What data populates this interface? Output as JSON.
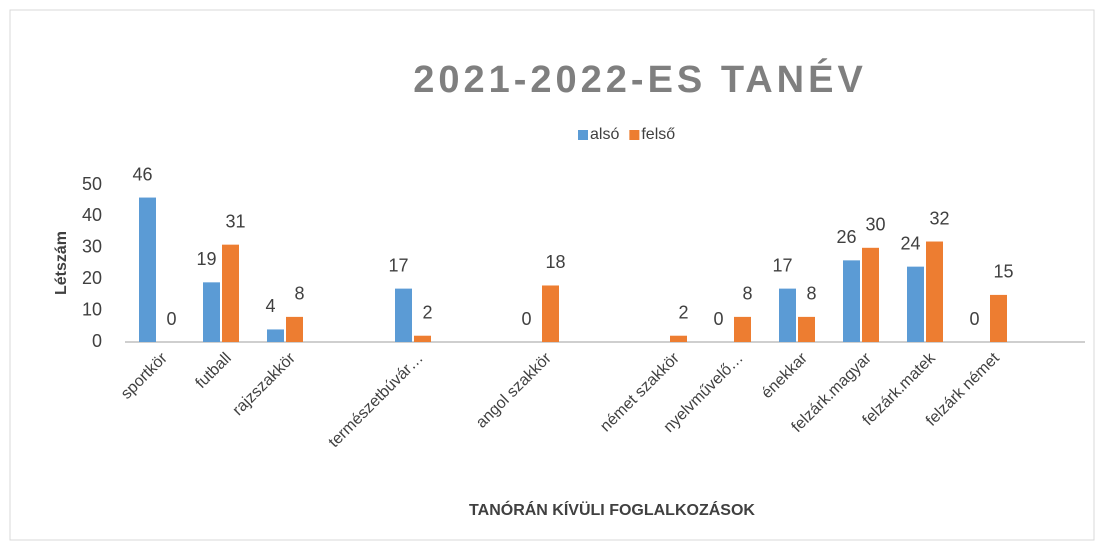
{
  "chart_data": {
    "type": "bar",
    "title": "2021-2022-ES TANÉV",
    "y_label": "Létszám",
    "x_label": "TANÓRÁN KÍVÜLI FOGLALKOZÁSOK",
    "categories": [
      "sportkör",
      "futball",
      "rajzszakkör",
      null,
      "természetbúvár…",
      null,
      "angol szakkör",
      null,
      "német szakkör",
      "nyelvművelő…",
      "énekkar",
      "felzárk.magyar",
      "felzárk.matek",
      "felzárk német",
      null
    ],
    "series": [
      {
        "name": "alsó",
        "color": "#5b9bd5",
        "values": [
          46,
          19,
          4,
          null,
          17,
          null,
          0,
          null,
          null,
          0,
          17,
          26,
          24,
          0,
          null
        ]
      },
      {
        "name": "felső",
        "color": "#ed7d31",
        "values": [
          0,
          31,
          8,
          null,
          2,
          null,
          18,
          null,
          2,
          8,
          8,
          30,
          32,
          15,
          null
        ]
      }
    ],
    "ylim": [
      0,
      50
    ],
    "yticks": [
      0,
      10,
      20,
      30,
      40,
      50
    ],
    "grid": false,
    "legend": "top"
  }
}
